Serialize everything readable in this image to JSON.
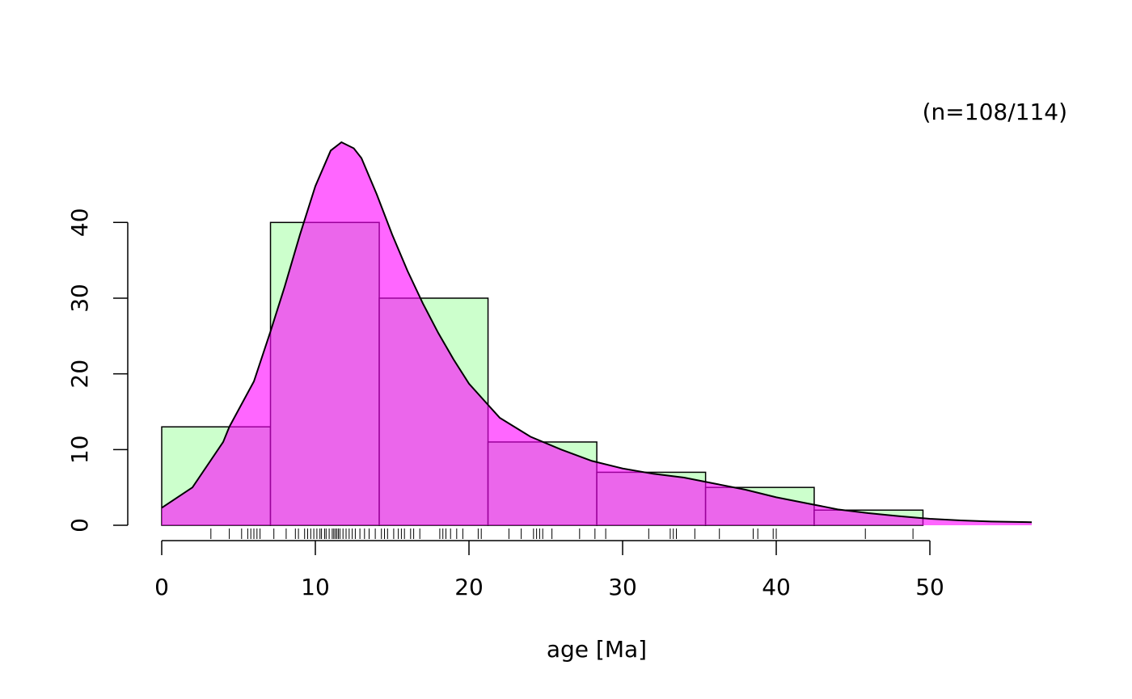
{
  "chart_data": {
    "type": "histogram",
    "annotation": "(n=108/114)",
    "xlabel": "age [Ma]",
    "bins": [
      0,
      7.08,
      14.16,
      21.24,
      28.32,
      35.4,
      42.47,
      49.55,
      56.63
    ],
    "counts": [
      13,
      40,
      30,
      11,
      7,
      5,
      2,
      0
    ],
    "color": "#ccffcc",
    "kde": {
      "color": "rgba(255,0,255,0.6)",
      "x": [
        0,
        2,
        4,
        4.4,
        6,
        7.08,
        8,
        9,
        10,
        11,
        11.7,
        12.5,
        13,
        14,
        15,
        16,
        17,
        18,
        19,
        20,
        21.2,
        22,
        24,
        26,
        28,
        30,
        32,
        34,
        36,
        38,
        40,
        42,
        44,
        46,
        48,
        50,
        52,
        54,
        56.63
      ],
      "y": [
        2.3,
        5,
        11,
        13,
        19,
        25.6,
        31.5,
        38.4,
        44.8,
        49.5,
        50.6,
        49.8,
        48.5,
        43.7,
        38.4,
        33.6,
        29.3,
        25.4,
        21.9,
        18.7,
        16,
        14.2,
        11.7,
        10,
        8.5,
        7.5,
        6.8,
        6.3,
        5.5,
        4.7,
        3.7,
        2.9,
        2.1,
        1.6,
        1.2,
        0.85,
        0.64,
        0.5,
        0.4
      ]
    },
    "rug": [
      3.2,
      4.4,
      5.2,
      5.6,
      5.8,
      6.0,
      6.2,
      6.4,
      7.3,
      8.1,
      8.7,
      8.9,
      9.3,
      9.5,
      9.7,
      9.9,
      10.1,
      10.3,
      10.4,
      10.6,
      10.7,
      10.9,
      11.1,
      11.2,
      11.3,
      11.4,
      11.5,
      11.6,
      11.8,
      12.0,
      12.2,
      12.4,
      12.6,
      12.9,
      13.2,
      13.5,
      13.9,
      14.3,
      14.5,
      14.7,
      15.1,
      15.4,
      15.6,
      15.8,
      16.2,
      16.4,
      16.8,
      18.1,
      18.3,
      18.5,
      18.8,
      19.2,
      19.6,
      20.6,
      20.8,
      22.6,
      23.4,
      24.2,
      24.4,
      24.6,
      24.8,
      25.4,
      27.2,
      28.2,
      28.9,
      31.7,
      33.1,
      33.3,
      33.5,
      34.7,
      36.3,
      38.5,
      38.8,
      39.8,
      40.0,
      45.8,
      48.9
    ],
    "xlim": [
      0,
      56.63
    ],
    "ylim": [
      0,
      50.6
    ],
    "xticks": [
      0,
      10,
      20,
      30,
      40,
      50
    ],
    "yticks": [
      0,
      10,
      20,
      30,
      40
    ]
  }
}
